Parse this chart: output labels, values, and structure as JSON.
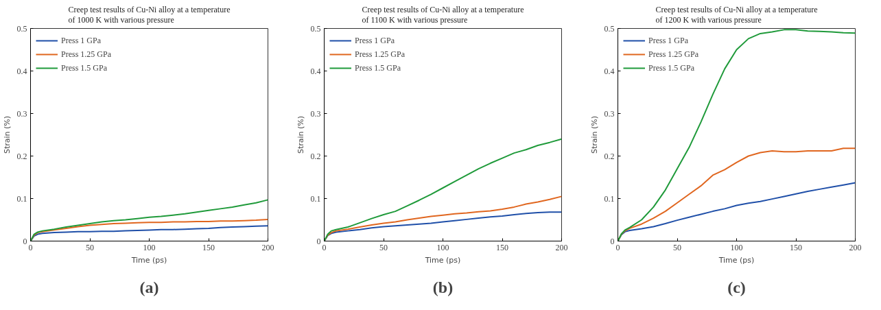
{
  "chart_data": [
    {
      "type": "line",
      "title": "Creep test results of Cu-Ni alloy at a temperature of 1000 K with various pressure",
      "xlabel": "Time (ps)",
      "ylabel": "Strain (%)",
      "annotations": [
        "(a)"
      ],
      "x": [
        0,
        3,
        6,
        10,
        20,
        30,
        40,
        50,
        60,
        70,
        80,
        90,
        100,
        110,
        120,
        130,
        140,
        150,
        160,
        170,
        180,
        190,
        200
      ],
      "series": [
        {
          "name": "Press 1 GPa",
          "color": "#1f4fa8",
          "values": [
            0,
            0.012,
            0.016,
            0.018,
            0.02,
            0.021,
            0.022,
            0.022,
            0.023,
            0.023,
            0.024,
            0.025,
            0.026,
            0.027,
            0.027,
            0.028,
            0.029,
            0.03,
            0.032,
            0.033,
            0.034,
            0.035,
            0.036
          ]
        },
        {
          "name": "Press 1.25 GPa",
          "color": "#e0661f",
          "values": [
            0,
            0.014,
            0.02,
            0.022,
            0.026,
            0.03,
            0.034,
            0.037,
            0.039,
            0.041,
            0.042,
            0.043,
            0.044,
            0.044,
            0.045,
            0.045,
            0.046,
            0.046,
            0.047,
            0.047,
            0.048,
            0.049,
            0.051
          ]
        },
        {
          "name": "Press 1.5 GPa",
          "color": "#1f9a3a",
          "values": [
            0,
            0.016,
            0.021,
            0.024,
            0.028,
            0.033,
            0.037,
            0.041,
            0.045,
            0.048,
            0.05,
            0.053,
            0.056,
            0.058,
            0.061,
            0.064,
            0.068,
            0.072,
            0.076,
            0.08,
            0.085,
            0.09,
            0.097
          ]
        }
      ],
      "xlim": [
        0,
        200
      ],
      "ylim": [
        0,
        0.5
      ],
      "xticks": [
        0,
        50,
        100,
        150,
        200
      ],
      "yticks": [
        0,
        0.1,
        0.2,
        0.3,
        0.4,
        0.5
      ],
      "grid": false,
      "legend": "top left",
      "marker": "none",
      "line_style": "solid"
    },
    {
      "type": "line",
      "title": "Creep test results of Cu-Ni alloy at a temperature of 1100 K with various pressure",
      "xlabel": "Time (ps)",
      "ylabel": "Strain (%)",
      "annotations": [
        "(b)"
      ],
      "x": [
        0,
        3,
        6,
        10,
        20,
        30,
        40,
        50,
        60,
        70,
        80,
        90,
        100,
        110,
        120,
        130,
        140,
        150,
        160,
        170,
        180,
        190,
        200
      ],
      "series": [
        {
          "name": "Press 1 GPa",
          "color": "#1f4fa8",
          "values": [
            0,
            0.013,
            0.018,
            0.021,
            0.024,
            0.027,
            0.031,
            0.034,
            0.036,
            0.038,
            0.04,
            0.042,
            0.045,
            0.048,
            0.051,
            0.054,
            0.057,
            0.059,
            0.062,
            0.065,
            0.067,
            0.068,
            0.068
          ]
        },
        {
          "name": "Press 1.25 GPa",
          "color": "#e0661f",
          "values": [
            0,
            0.014,
            0.02,
            0.024,
            0.028,
            0.033,
            0.038,
            0.042,
            0.045,
            0.05,
            0.054,
            0.058,
            0.061,
            0.064,
            0.066,
            0.069,
            0.071,
            0.075,
            0.08,
            0.087,
            0.092,
            0.098,
            0.105
          ]
        },
        {
          "name": "Press 1.5 GPa",
          "color": "#1f9a3a",
          "values": [
            0,
            0.016,
            0.024,
            0.027,
            0.033,
            0.043,
            0.053,
            0.062,
            0.07,
            0.083,
            0.096,
            0.11,
            0.125,
            0.14,
            0.155,
            0.17,
            0.183,
            0.195,
            0.207,
            0.215,
            0.225,
            0.232,
            0.24
          ]
        }
      ],
      "xlim": [
        0,
        200
      ],
      "ylim": [
        0,
        0.5
      ],
      "xticks": [
        0,
        50,
        100,
        150,
        200
      ],
      "yticks": [
        0,
        0.1,
        0.2,
        0.3,
        0.4,
        0.5
      ],
      "grid": false,
      "legend": "top left",
      "marker": "none",
      "line_style": "solid"
    },
    {
      "type": "line",
      "title": "Creep test results of Cu-Ni alloy at a temperature of 1200 K with various pressure",
      "xlabel": "Time (ps)",
      "ylabel": "Strain (%)",
      "annotations": [
        "(c)"
      ],
      "x": [
        0,
        3,
        6,
        10,
        20,
        30,
        40,
        50,
        60,
        70,
        80,
        90,
        100,
        110,
        120,
        130,
        140,
        150,
        160,
        170,
        180,
        190,
        200
      ],
      "series": [
        {
          "name": "Press 1 GPa",
          "color": "#1f4fa8",
          "values": [
            0,
            0.015,
            0.022,
            0.025,
            0.029,
            0.034,
            0.041,
            0.049,
            0.056,
            0.063,
            0.07,
            0.076,
            0.084,
            0.089,
            0.093,
            0.099,
            0.105,
            0.111,
            0.117,
            0.122,
            0.127,
            0.132,
            0.137
          ]
        },
        {
          "name": "Press 1.25 GPa",
          "color": "#e0661f",
          "values": [
            0,
            0.016,
            0.024,
            0.03,
            0.04,
            0.054,
            0.07,
            0.09,
            0.11,
            0.13,
            0.155,
            0.168,
            0.185,
            0.2,
            0.208,
            0.212,
            0.21,
            0.21,
            0.212,
            0.212,
            0.212,
            0.218,
            0.218
          ]
        },
        {
          "name": "Press 1.5 GPa",
          "color": "#1f9a3a",
          "values": [
            0,
            0.017,
            0.026,
            0.032,
            0.05,
            0.08,
            0.12,
            0.17,
            0.22,
            0.28,
            0.345,
            0.405,
            0.45,
            0.476,
            0.488,
            0.492,
            0.497,
            0.497,
            0.494,
            0.493,
            0.492,
            0.49,
            0.489
          ]
        }
      ],
      "xlim": [
        0,
        200
      ],
      "ylim": [
        0,
        0.5
      ],
      "xticks": [
        0,
        50,
        100,
        150,
        200
      ],
      "yticks": [
        0,
        0.1,
        0.2,
        0.3,
        0.4,
        0.5
      ],
      "grid": false,
      "legend": "top left",
      "marker": "none",
      "line_style": "solid"
    }
  ]
}
